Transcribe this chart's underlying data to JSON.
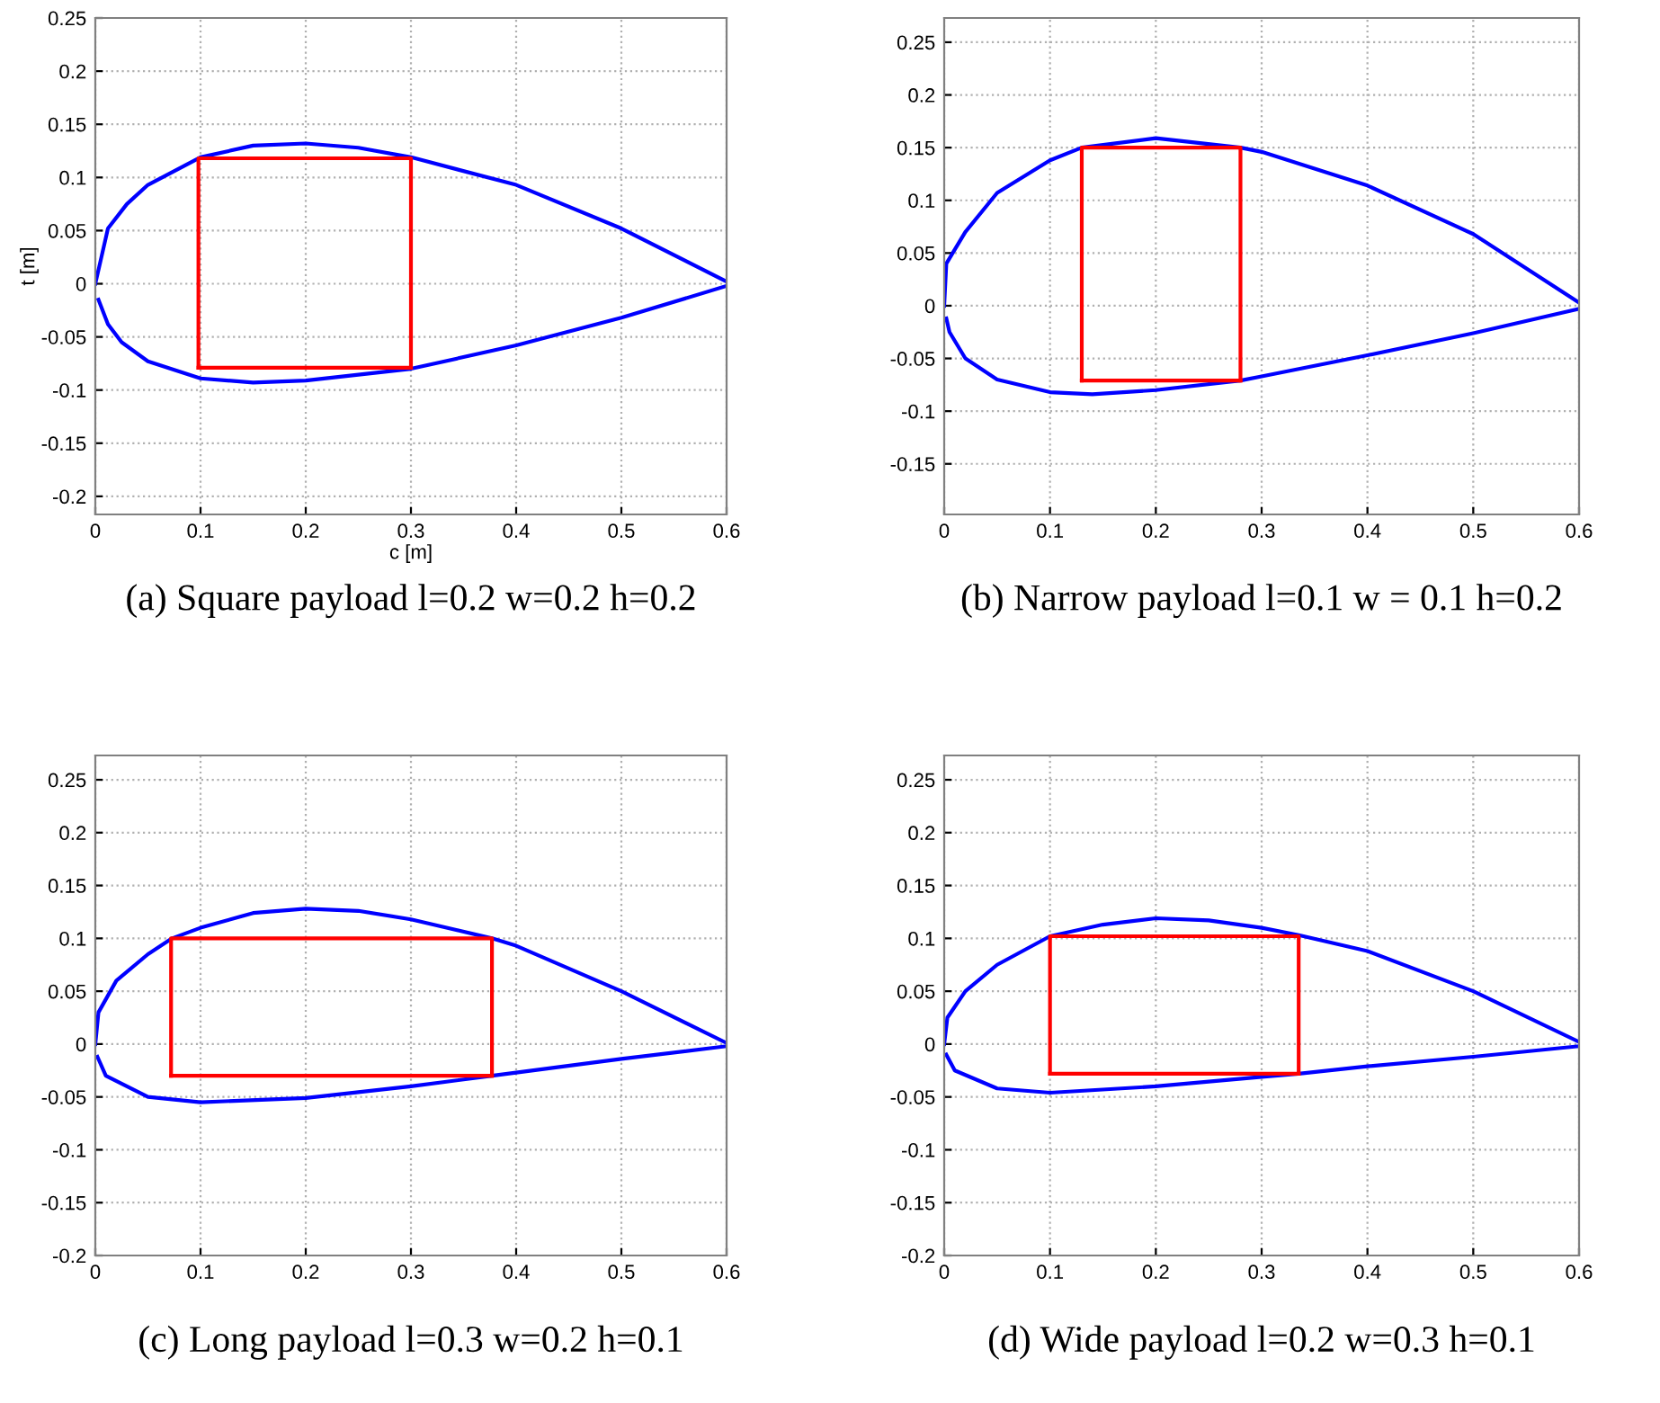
{
  "chart_data": [
    {
      "type": "line",
      "xlabel": "c [m]",
      "ylabel": "t [m]",
      "annotations": [
        "(a) Square payload l=0.2 w=0.2 h=0.2"
      ],
      "xlim": [
        0,
        0.6
      ],
      "ylim": [
        -0.217,
        0.25
      ],
      "xticks": [
        0,
        0.1,
        0.2,
        0.3,
        0.4,
        0.5,
        0.6
      ],
      "yticks": [
        -0.2,
        -0.15,
        -0.1,
        -0.05,
        0,
        0.05,
        0.1,
        0.15,
        0.2,
        0.25
      ],
      "grid": true,
      "line_style": "solid",
      "series": [
        {
          "color": "#0000ff",
          "x": [
            0,
            0.012,
            0.03,
            0.05,
            0.1,
            0.15,
            0.2,
            0.25,
            0.3,
            0.4,
            0.5,
            0.6
          ],
          "values": [
            0,
            0.052,
            0.075,
            0.093,
            0.119,
            0.13,
            0.132,
            0.128,
            0.119,
            0.093,
            0.052,
            0.002
          ]
        },
        {
          "color": "#0000ff",
          "x": [
            0.003,
            0.012,
            0.025,
            0.05,
            0.1,
            0.15,
            0.2,
            0.3,
            0.4,
            0.5,
            0.6
          ],
          "values": [
            -0.015,
            -0.038,
            -0.055,
            -0.073,
            -0.089,
            -0.093,
            -0.091,
            -0.08,
            -0.058,
            -0.032,
            -0.002
          ]
        },
        {
          "color": "#ff0000",
          "x": [
            0.098,
            0.098,
            0.3,
            0.3
          ],
          "values": [
            -0.079,
            0.118,
            0.118,
            -0.079
          ]
        },
        {
          "color": "#ff0000",
          "x": [
            0.098,
            0.3
          ],
          "values": [
            -0.079,
            -0.079
          ]
        }
      ]
    },
    {
      "type": "line",
      "annotations": [
        "(b) Narrow payload l=0.1 w = 0.1 h=0.2"
      ],
      "xlim": [
        0,
        0.6
      ],
      "ylim": [
        -0.198,
        0.273
      ],
      "xticks": [
        0,
        0.1,
        0.2,
        0.3,
        0.4,
        0.5,
        0.6
      ],
      "yticks": [
        -0.15,
        -0.1,
        -0.05,
        0,
        0.05,
        0.1,
        0.15,
        0.2,
        0.25
      ],
      "grid": true,
      "line_style": "solid",
      "series": [
        {
          "color": "#0000ff",
          "x": [
            0,
            0.002,
            0.02,
            0.05,
            0.1,
            0.13,
            0.2,
            0.28,
            0.3,
            0.4,
            0.5,
            0.6
          ],
          "values": [
            0,
            0.04,
            0.07,
            0.107,
            0.138,
            0.15,
            0.159,
            0.15,
            0.146,
            0.114,
            0.068,
            0.003
          ]
        },
        {
          "color": "#0000ff",
          "x": [
            0.002,
            0.005,
            0.02,
            0.05,
            0.1,
            0.14,
            0.2,
            0.28,
            0.3,
            0.4,
            0.5,
            0.6
          ],
          "values": [
            -0.012,
            -0.025,
            -0.05,
            -0.07,
            -0.082,
            -0.084,
            -0.08,
            -0.071,
            -0.067,
            -0.047,
            -0.026,
            -0.003
          ]
        },
        {
          "color": "#ff0000",
          "x": [
            0.13,
            0.13,
            0.28,
            0.28
          ],
          "values": [
            -0.071,
            0.15,
            0.15,
            -0.071
          ]
        },
        {
          "color": "#ff0000",
          "x": [
            0.13,
            0.28
          ],
          "values": [
            -0.071,
            -0.071
          ]
        }
      ]
    },
    {
      "type": "line",
      "annotations": [
        "(c) Long payload l=0.3 w=0.2 h=0.1"
      ],
      "xlim": [
        0,
        0.6
      ],
      "ylim": [
        -0.2,
        0.273
      ],
      "xticks": [
        0,
        0.1,
        0.2,
        0.3,
        0.4,
        0.5,
        0.6
      ],
      "yticks": [
        -0.2,
        -0.15,
        -0.1,
        -0.05,
        0,
        0.05,
        0.1,
        0.15,
        0.2,
        0.25
      ],
      "grid": true,
      "line_style": "solid",
      "series": [
        {
          "color": "#0000ff",
          "x": [
            0,
            0.003,
            0.02,
            0.05,
            0.073,
            0.1,
            0.15,
            0.2,
            0.25,
            0.3,
            0.377,
            0.4,
            0.5,
            0.6
          ],
          "values": [
            0,
            0.03,
            0.06,
            0.085,
            0.1,
            0.11,
            0.124,
            0.128,
            0.126,
            0.118,
            0.1,
            0.093,
            0.05,
            0.001
          ]
        },
        {
          "color": "#0000ff",
          "x": [
            0.002,
            0.01,
            0.05,
            0.1,
            0.2,
            0.3,
            0.377,
            0.4,
            0.5,
            0.6
          ],
          "values": [
            -0.012,
            -0.03,
            -0.05,
            -0.055,
            -0.051,
            -0.04,
            -0.03,
            -0.027,
            -0.014,
            -0.002
          ]
        },
        {
          "color": "#ff0000",
          "x": [
            0.072,
            0.072,
            0.377,
            0.377
          ],
          "values": [
            -0.03,
            0.1,
            0.1,
            -0.03
          ]
        },
        {
          "color": "#ff0000",
          "x": [
            0.072,
            0.377
          ],
          "values": [
            -0.03,
            -0.03
          ]
        }
      ]
    },
    {
      "type": "line",
      "annotations": [
        "(d) Wide payload l=0.2 w=0.3 h=0.1"
      ],
      "xlim": [
        0,
        0.6
      ],
      "ylim": [
        -0.2,
        0.273
      ],
      "xticks": [
        0,
        0.1,
        0.2,
        0.3,
        0.4,
        0.5,
        0.6
      ],
      "yticks": [
        -0.2,
        -0.15,
        -0.1,
        -0.05,
        0,
        0.05,
        0.1,
        0.15,
        0.2,
        0.25
      ],
      "grid": true,
      "line_style": "solid",
      "series": [
        {
          "color": "#0000ff",
          "x": [
            0,
            0.003,
            0.02,
            0.05,
            0.1,
            0.15,
            0.2,
            0.25,
            0.3,
            0.335,
            0.4,
            0.5,
            0.6
          ],
          "values": [
            0,
            0.025,
            0.05,
            0.075,
            0.102,
            0.113,
            0.119,
            0.117,
            0.11,
            0.103,
            0.088,
            0.05,
            0.002
          ]
        },
        {
          "color": "#0000ff",
          "x": [
            0.002,
            0.01,
            0.05,
            0.1,
            0.2,
            0.3,
            0.335,
            0.4,
            0.5,
            0.6
          ],
          "values": [
            -0.01,
            -0.025,
            -0.042,
            -0.046,
            -0.04,
            -0.031,
            -0.028,
            -0.021,
            -0.012,
            -0.002
          ]
        },
        {
          "color": "#ff0000",
          "x": [
            0.1,
            0.1,
            0.335,
            0.335
          ],
          "values": [
            -0.028,
            0.102,
            0.102,
            -0.028
          ]
        },
        {
          "color": "#ff0000",
          "x": [
            0.1,
            0.335
          ],
          "values": [
            -0.028,
            -0.028
          ]
        }
      ]
    }
  ]
}
